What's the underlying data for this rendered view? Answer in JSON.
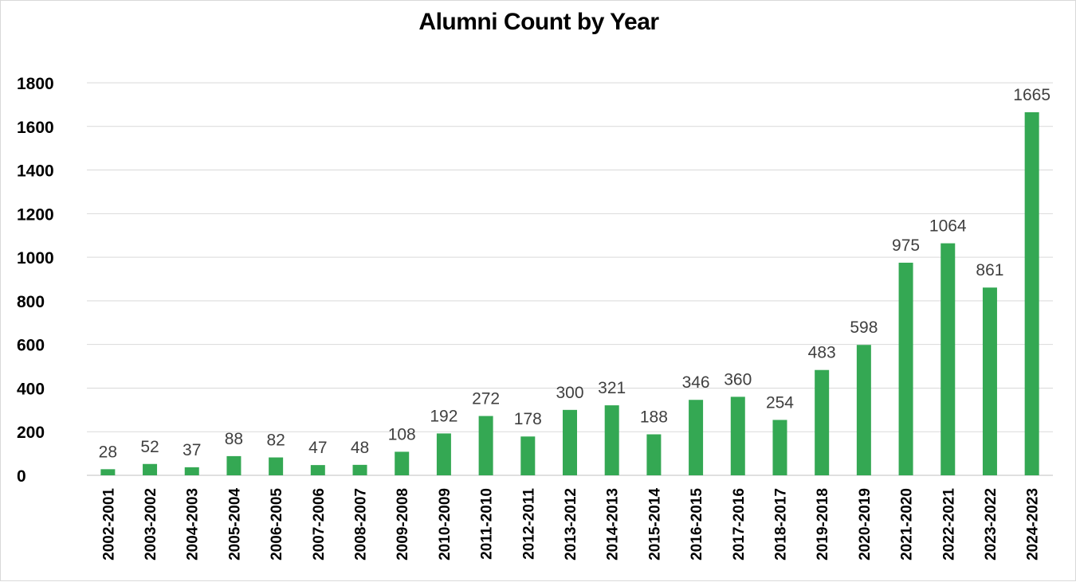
{
  "chart_data": {
    "type": "bar",
    "title": "Alumni Count by Year",
    "xlabel": "",
    "ylabel": "",
    "categories": [
      "2002-2001",
      "2003-2002",
      "2004-2003",
      "2005-2004",
      "2006-2005",
      "2007-2006",
      "2008-2007",
      "2009-2008",
      "2010-2009",
      "2011-2010",
      "2012-2011",
      "2013-2012",
      "2014-2013",
      "2015-2014",
      "2016-2015",
      "2017-2016",
      "2018-2017",
      "2019-2018",
      "2020-2019",
      "2021-2020",
      "2022-2021",
      "2023-2022",
      "2024-2023"
    ],
    "values": [
      28,
      52,
      37,
      88,
      82,
      47,
      48,
      108,
      192,
      272,
      178,
      300,
      321,
      188,
      346,
      360,
      254,
      483,
      598,
      975,
      1064,
      861,
      1665
    ],
    "ylim": [
      0,
      1800
    ],
    "yticks": [
      0,
      200,
      400,
      600,
      800,
      1000,
      1200,
      1400,
      1600,
      1800
    ],
    "grid": true,
    "legend": "none",
    "bar_color": "#34a853",
    "grid_color": "#d9d9d9"
  }
}
